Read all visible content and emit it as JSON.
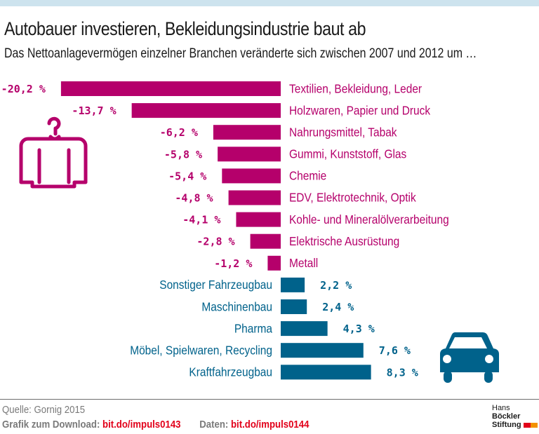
{
  "header": {
    "title": "Autobauer investieren, Bekleidungsindustrie baut ab",
    "subtitle": "Das Nettoanlagevermögen einzelner Branchen veränderte sich zwischen 2007 und 2012 um …"
  },
  "colors": {
    "negative": "#b5006b",
    "positive": "#00628b",
    "topbar": "#cde3ee",
    "link": "#e2001a"
  },
  "icons": {
    "negative_group": "clothes-hanger-sweater-icon",
    "positive_group": "car-icon"
  },
  "chart_data": {
    "type": "bar",
    "orientation": "horizontal",
    "title": "Autobauer investieren, Bekleidungsindustrie baut ab",
    "subtitle": "Das Nettoanlagevermögen einzelner Branchen veränderte sich zwischen 2007 und 2012 um …",
    "unit": "%",
    "xlim": [
      -20.2,
      8.3
    ],
    "grid": false,
    "categories": [
      "Textilien, Bekleidung, Leder",
      "Holzwaren, Papier und Druck",
      "Nahrungsmittel, Tabak",
      "Gummi, Kunststoff, Glas",
      "Chemie",
      "EDV, Elektrotechnik, Optik",
      "Kohle- und Mineralölverarbeitung",
      "Elektrische Ausrüstung",
      "Metall",
      "Sonstiger Fahrzeugbau",
      "Maschinenbau",
      "Pharma",
      "Möbel, Spielwaren, Recycling",
      "Kraftfahrzeugbau"
    ],
    "values": [
      -20.2,
      -13.7,
      -6.2,
      -5.8,
      -5.4,
      -4.8,
      -4.1,
      -2.8,
      -1.2,
      2.2,
      2.4,
      4.3,
      7.6,
      8.3
    ],
    "value_labels": [
      "-20,2 %",
      "-13,7 %",
      "-6,2 %",
      "-5,8 %",
      "-5,4 %",
      "-4,8 %",
      "-4,1 %",
      "-2,8 %",
      "-1,2 %",
      "2,2 %",
      "2,4 %",
      "4,3 %",
      "7,6 %",
      "8,3 %"
    ]
  },
  "footer": {
    "source": "Quelle: Gornig 2015",
    "download_label": "Grafik zum Download:",
    "download_link": "bit.do/impuls0143",
    "data_label": "Daten:",
    "data_link": "bit.do/impuls0144",
    "logo_line1_light": "Hans",
    "logo_line1_bold": "Böckler",
    "logo_line2": "Stiftung"
  }
}
